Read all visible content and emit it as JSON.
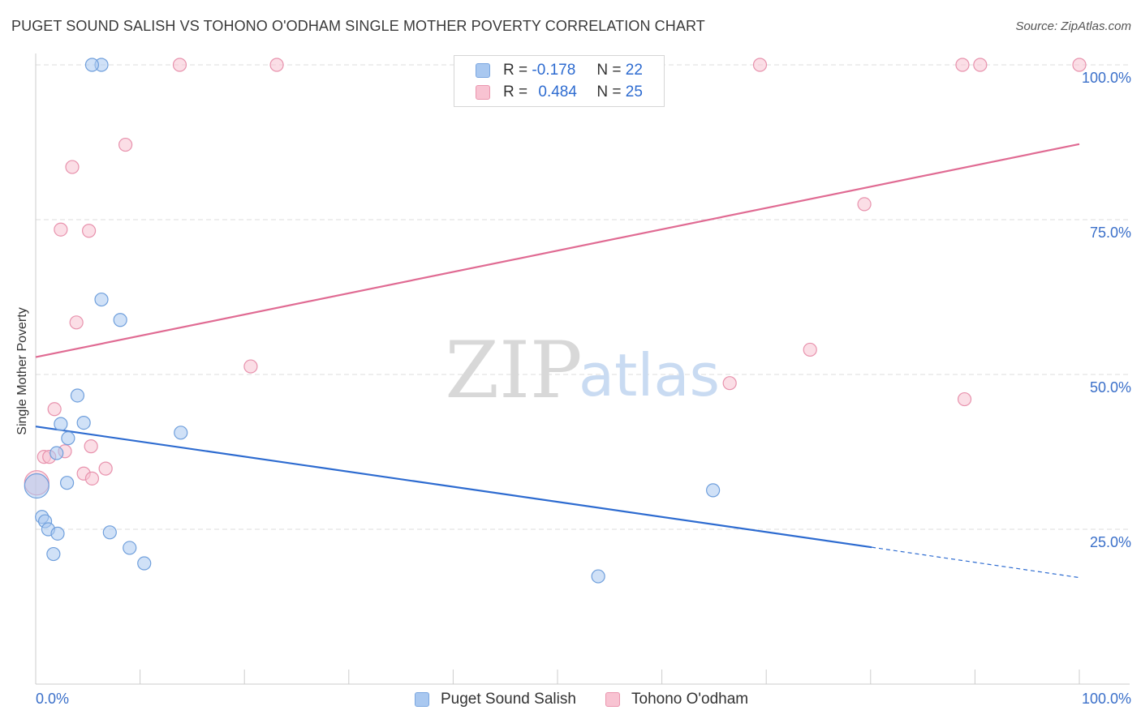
{
  "header": {
    "title": "PUGET SOUND SALISH VS TOHONO O'ODHAM SINGLE MOTHER POVERTY CORRELATION CHART",
    "source": "Source: ZipAtlas.com"
  },
  "watermark": {
    "zip": "ZIP",
    "atlas": "atlas"
  },
  "legend": {
    "rows": [
      {
        "r_label": "R =",
        "r_value": "-0.178",
        "n_label": "N =",
        "n_value": "22",
        "color": "#a9c8f0",
        "border": "#7aa6e0"
      },
      {
        "r_label": "R =",
        "r_value": "0.484",
        "n_label": "N =",
        "n_value": "25",
        "color": "#f8c3d2",
        "border": "#ea95ae"
      }
    ]
  },
  "colors": {
    "blue_point_fill": "#a9c8f0",
    "blue_point_stroke": "#6f9fdc",
    "blue_line": "#2d6bd0",
    "pink_point_fill": "#f8c3d2",
    "pink_point_stroke": "#e892ad",
    "pink_line": "#e06b93",
    "axis_text": "#3a6fc9",
    "grid": "#dddddd"
  },
  "chart_data": {
    "type": "scatter",
    "title": "PUGET SOUND SALISH VS TOHONO O'ODHAM SINGLE MOTHER POVERTY CORRELATION CHART",
    "xlabel": "",
    "ylabel": "Single Mother Poverty",
    "xlim": [
      0,
      100
    ],
    "ylim": [
      0,
      100
    ],
    "x_tick_labels": {
      "min": "0.0%",
      "max": "100.0%"
    },
    "y_ticks": [
      {
        "value": 100,
        "label": "100.0%"
      },
      {
        "value": 75,
        "label": "75.0%"
      },
      {
        "value": 50,
        "label": "50.0%"
      },
      {
        "value": 25,
        "label": "25.0%"
      }
    ],
    "grid": true,
    "legend_position": "bottom",
    "series": [
      {
        "name": "Puget Sound Salish",
        "color": "#a9c8f0",
        "points": [
          {
            "x": 0.1,
            "y": 32.0,
            "big": true
          },
          {
            "x": 0.6,
            "y": 27.0
          },
          {
            "x": 0.9,
            "y": 26.3
          },
          {
            "x": 1.2,
            "y": 25.0
          },
          {
            "x": 1.7,
            "y": 21.0
          },
          {
            "x": 2.1,
            "y": 24.3
          },
          {
            "x": 2.0,
            "y": 37.3
          },
          {
            "x": 2.4,
            "y": 42.0
          },
          {
            "x": 3.0,
            "y": 32.5
          },
          {
            "x": 3.1,
            "y": 39.7
          },
          {
            "x": 4.0,
            "y": 46.6
          },
          {
            "x": 4.6,
            "y": 42.2
          },
          {
            "x": 7.1,
            "y": 24.5
          },
          {
            "x": 9.0,
            "y": 22.0
          },
          {
            "x": 10.4,
            "y": 19.5
          },
          {
            "x": 6.3,
            "y": 62.1
          },
          {
            "x": 8.1,
            "y": 58.8
          },
          {
            "x": 13.9,
            "y": 40.6
          },
          {
            "x": 6.3,
            "y": 100
          },
          {
            "x": 5.4,
            "y": 100
          },
          {
            "x": 53.9,
            "y": 17.4
          },
          {
            "x": 64.9,
            "y": 31.3
          }
        ],
        "trend": {
          "x0": 0,
          "y0": 41.6,
          "x1": 80.1,
          "y1": 22.1,
          "dash_to_x": 100,
          "dash_to_y": 17.2
        }
      },
      {
        "name": "Tohono O'odham",
        "color": "#f8c3d2",
        "points": [
          {
            "x": 0.1,
            "y": 32.5,
            "big": true
          },
          {
            "x": 0.8,
            "y": 36.7
          },
          {
            "x": 1.3,
            "y": 36.7
          },
          {
            "x": 1.8,
            "y": 44.4
          },
          {
            "x": 2.8,
            "y": 37.6
          },
          {
            "x": 4.6,
            "y": 34.0
          },
          {
            "x": 5.4,
            "y": 33.2
          },
          {
            "x": 5.3,
            "y": 38.4
          },
          {
            "x": 6.7,
            "y": 34.8
          },
          {
            "x": 2.4,
            "y": 73.4
          },
          {
            "x": 5.1,
            "y": 73.2
          },
          {
            "x": 3.5,
            "y": 83.5
          },
          {
            "x": 8.6,
            "y": 87.1
          },
          {
            "x": 3.9,
            "y": 58.4
          },
          {
            "x": 13.8,
            "y": 100
          },
          {
            "x": 23.1,
            "y": 100
          },
          {
            "x": 20.6,
            "y": 51.3
          },
          {
            "x": 69.4,
            "y": 100
          },
          {
            "x": 88.8,
            "y": 100
          },
          {
            "x": 90.5,
            "y": 100
          },
          {
            "x": 100,
            "y": 100
          },
          {
            "x": 79.4,
            "y": 77.5
          },
          {
            "x": 74.2,
            "y": 54.0
          },
          {
            "x": 66.5,
            "y": 48.6
          },
          {
            "x": 89.0,
            "y": 46.0
          }
        ],
        "trend": {
          "x0": 0,
          "y0": 52.8,
          "x1": 100,
          "y1": 87.2
        }
      }
    ]
  }
}
